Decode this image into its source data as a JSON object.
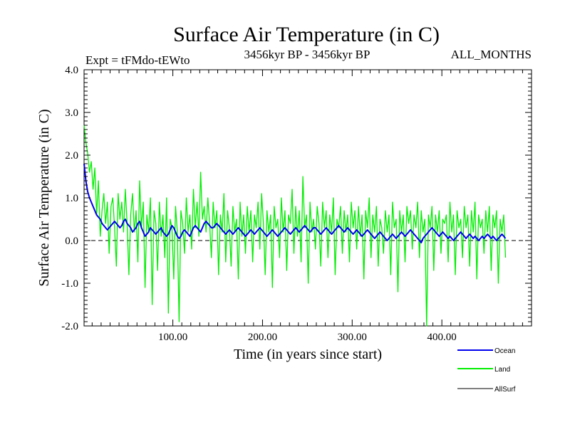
{
  "chart_data": {
    "type": "line",
    "title": "Surface Air Temperature (in C)",
    "subtitle_left": "Expt = tFMdo-tEWto",
    "subtitle_center": "3456kyr BP - 3456kyr BP",
    "subtitle_right": "ALL_MONTHS",
    "xlabel": "Time (in years since start)",
    "ylabel": "Surface Air Temperature (in C)",
    "xlim": [
      1,
      500
    ],
    "ylim": [
      -2.0,
      4.0
    ],
    "x_ticks": [
      100,
      200,
      300,
      400
    ],
    "x_tick_labels": [
      "100.00",
      "200.00",
      "300.00",
      "400.00"
    ],
    "y_ticks": [
      -2,
      -1,
      0,
      1,
      2,
      3,
      4
    ],
    "y_tick_labels": [
      "-2.0",
      "-1.0",
      "0.0",
      "1.0",
      "2.0",
      "3.0",
      "4.0"
    ],
    "zero_line": 0.0,
    "x_start": 1,
    "x_step": 2,
    "series": [
      {
        "name": "Land",
        "color": "#00ee00",
        "values": [
          2.7,
          2.3,
          2.05,
          1.6,
          1.85,
          1.2,
          1.7,
          0.6,
          1.4,
          0.1,
          0.7,
          1.1,
          0.4,
          0.9,
          -0.3,
          0.8,
          1.0,
          0.3,
          -0.6,
          1.1,
          0.5,
          0.9,
          0.2,
          1.2,
          0.4,
          -0.8,
          0.6,
          1.1,
          0.2,
          0.7,
          -0.5,
          1.4,
          0.3,
          0.9,
          -1.1,
          0.6,
          0.2,
          1.0,
          -1.5,
          0.7,
          0.4,
          -0.7,
          0.9,
          0.1,
          0.6,
          -0.4,
          1.0,
          -1.7,
          0.5,
          0.3,
          -0.9,
          0.8,
          0.2,
          -1.9,
          0.7,
          0.4,
          -0.3,
          1.0,
          0.2,
          0.6,
          -0.2,
          1.2,
          0.3,
          0.9,
          0.1,
          1.6,
          0.5,
          0.8,
          0.2,
          1.0,
          0.4,
          -0.4,
          0.9,
          0.3,
          0.7,
          -0.8,
          0.6,
          0.2,
          1.1,
          -0.5,
          0.7,
          0.3,
          -0.6,
          0.8,
          0.2,
          0.5,
          -0.9,
          0.9,
          0.1,
          0.6,
          -0.3,
          0.8,
          0.2,
          0.7,
          -0.5,
          0.6,
          0.3,
          0.9,
          -0.2,
          1.1,
          0.4,
          -0.8,
          0.7,
          0.2,
          0.6,
          -1.1,
          0.8,
          0.3,
          0.5,
          -0.4,
          1.0,
          0.2,
          0.7,
          -0.7,
          0.6,
          0.4,
          1.2,
          -0.3,
          0.8,
          0.1,
          0.7,
          -0.5,
          1.5,
          0.3,
          0.6,
          -1.0,
          0.9,
          0.2,
          0.5,
          -0.2,
          0.8,
          0.4,
          -0.6,
          0.9,
          0.3,
          0.7,
          -0.4,
          0.6,
          0.2,
          1.0,
          -0.8,
          0.5,
          0.3,
          0.8,
          -0.3,
          0.7,
          0.2,
          0.6,
          -0.5,
          0.9,
          0.3,
          0.7,
          -0.2,
          0.8,
          0.1,
          0.6,
          -0.9,
          0.7,
          0.3,
          1.0,
          -0.4,
          0.6,
          0.2,
          0.8,
          -0.6,
          0.5,
          0.3,
          -0.3,
          0.7,
          0.2,
          0.6,
          -0.8,
          0.9,
          0.3,
          0.5,
          -1.2,
          0.7,
          0.2,
          0.6,
          -0.5,
          0.8,
          0.4,
          0.7,
          -0.2,
          0.6,
          0.3,
          0.9,
          -0.4,
          0.7,
          0.2,
          0.5,
          -2.0,
          0.6,
          0.3,
          0.8,
          -0.7,
          0.6,
          0.2,
          0.7,
          -0.3,
          0.5,
          0.4,
          0.6,
          -0.5,
          0.9,
          0.2,
          0.6,
          -0.8,
          0.7,
          0.3,
          0.5,
          -0.4,
          0.8,
          0.3,
          0.6,
          -0.6,
          0.7,
          0.2,
          0.9,
          -0.9,
          0.6,
          0.3,
          0.5,
          -0.3,
          0.7,
          0.2,
          0.8,
          -0.7,
          0.6,
          0.3,
          0.7,
          -1.0,
          0.5,
          0.2,
          0.6,
          -0.4
        ]
      },
      {
        "name": "Ocean",
        "color": "#0000ee",
        "values": [
          1.8,
          1.4,
          1.15,
          1.0,
          0.9,
          0.8,
          0.7,
          0.6,
          0.55,
          0.5,
          0.4,
          0.35,
          0.3,
          0.25,
          0.3,
          0.35,
          0.4,
          0.45,
          0.4,
          0.35,
          0.3,
          0.35,
          0.45,
          0.5,
          0.4,
          0.35,
          0.3,
          0.2,
          0.25,
          0.3,
          0.4,
          0.45,
          0.3,
          0.2,
          0.1,
          0.15,
          0.2,
          0.3,
          0.25,
          0.2,
          0.15,
          0.2,
          0.25,
          0.3,
          0.2,
          0.15,
          0.1,
          0.15,
          0.25,
          0.35,
          0.3,
          0.2,
          0.1,
          0.05,
          0.1,
          0.2,
          0.25,
          0.2,
          0.15,
          0.1,
          0.2,
          0.3,
          0.35,
          0.3,
          0.25,
          0.2,
          0.3,
          0.4,
          0.45,
          0.4,
          0.35,
          0.3,
          0.3,
          0.35,
          0.4,
          0.35,
          0.3,
          0.25,
          0.2,
          0.15,
          0.2,
          0.25,
          0.2,
          0.15,
          0.2,
          0.25,
          0.3,
          0.25,
          0.2,
          0.15,
          0.1,
          0.15,
          0.2,
          0.25,
          0.2,
          0.15,
          0.2,
          0.25,
          0.3,
          0.25,
          0.2,
          0.15,
          0.1,
          0.15,
          0.2,
          0.25,
          0.2,
          0.15,
          0.1,
          0.15,
          0.2,
          0.25,
          0.3,
          0.25,
          0.2,
          0.15,
          0.2,
          0.25,
          0.3,
          0.25,
          0.2,
          0.25,
          0.3,
          0.35,
          0.3,
          0.25,
          0.2,
          0.25,
          0.3,
          0.3,
          0.25,
          0.2,
          0.15,
          0.2,
          0.25,
          0.3,
          0.25,
          0.2,
          0.15,
          0.2,
          0.25,
          0.3,
          0.35,
          0.3,
          0.25,
          0.2,
          0.25,
          0.3,
          0.25,
          0.2,
          0.15,
          0.2,
          0.25,
          0.2,
          0.15,
          0.1,
          0.15,
          0.2,
          0.25,
          0.2,
          0.15,
          0.1,
          0.05,
          0.1,
          0.15,
          0.2,
          0.15,
          0.1,
          0.05,
          0.0,
          0.05,
          0.1,
          0.15,
          0.1,
          0.05,
          0.1,
          0.15,
          0.2,
          0.15,
          0.1,
          0.15,
          0.2,
          0.25,
          0.2,
          0.15,
          0.1,
          0.05,
          0.0,
          -0.05,
          0.05,
          0.1,
          0.15,
          0.2,
          0.25,
          0.3,
          0.25,
          0.2,
          0.15,
          0.1,
          0.15,
          0.2,
          0.15,
          0.1,
          0.05,
          0.1,
          0.05,
          0.0,
          0.05,
          0.1,
          0.15,
          0.2,
          0.15,
          0.1,
          0.05,
          0.1,
          0.15,
          0.1,
          0.05,
          0.1,
          0.05,
          0.0,
          0.05,
          0.1,
          0.05,
          0.1,
          0.15,
          0.1,
          0.05,
          0.1,
          0.05,
          0.0,
          0.05,
          0.1,
          0.15,
          0.1,
          0.05
        ]
      },
      {
        "name": "AllSurf",
        "color": "#000000",
        "values": []
      }
    ],
    "legend": [
      {
        "label": "Ocean",
        "color": "#0000ee"
      },
      {
        "label": "Land",
        "color": "#00ee00"
      },
      {
        "label": "AllSurf",
        "color": "#000000"
      }
    ]
  }
}
